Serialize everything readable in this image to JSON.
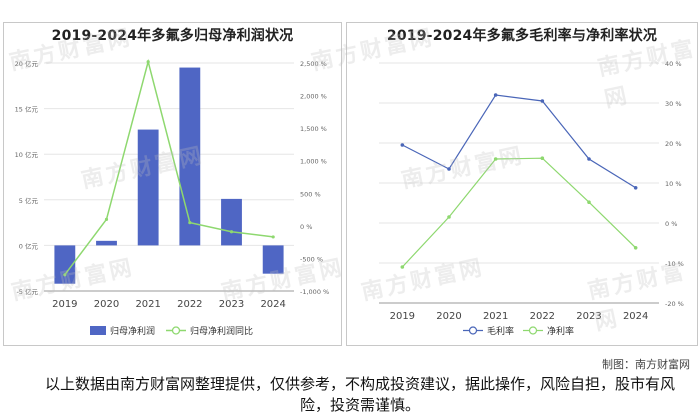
{
  "watermark": "南方财富网",
  "source": "制图：南方财富网",
  "disclaimer": "以上数据由南方财富网整理提供，仅供参考，不构成投资建议，据此操作，风险自担，股市有风险，投资需谨慎。",
  "colors": {
    "bar": "#4f66c4",
    "line_green": "#8ed86f",
    "line_blue": "#4a66b8",
    "grid": "#e6e6e6"
  },
  "chart_data": [
    {
      "type": "bar+line",
      "title": "2019-2024年多氟多归母净利润状况",
      "categories": [
        "2019",
        "2020",
        "2021",
        "2022",
        "2023",
        "2024"
      ],
      "series": [
        {
          "name": "归母净利润",
          "type": "bar",
          "axis": "left",
          "values": [
            -4.2,
            0.5,
            12.7,
            19.5,
            5.1,
            -3.1
          ]
        },
        {
          "name": "归母净利润同比",
          "type": "line",
          "axis": "right",
          "values": [
            -750,
            100,
            2520,
            50,
            -90,
            -170
          ]
        }
      ],
      "left_axis": {
        "ticks": [
          -5,
          0,
          5,
          10,
          15,
          20
        ],
        "labels": [
          "-5 亿元",
          "0 亿元",
          "5 亿元",
          "10 亿元",
          "15 亿元",
          "20 亿元"
        ],
        "range": [
          -5,
          20
        ]
      },
      "right_axis": {
        "ticks": [
          -1000,
          -500,
          0,
          500,
          1000,
          1500,
          2000,
          2500
        ],
        "labels": [
          "-1,000 %",
          "-500 %",
          "0 %",
          "500 %",
          "1,000 %",
          "1,500 %",
          "2,000 %",
          "2,500 %"
        ],
        "range": [
          -1000,
          2500
        ]
      },
      "legend_position": "bottom"
    },
    {
      "type": "line",
      "title": "2019-2024年多氟多毛利率与净利率状况",
      "categories": [
        "2019",
        "2020",
        "2021",
        "2022",
        "2023",
        "2024"
      ],
      "series": [
        {
          "name": "毛利率",
          "values": [
            19.5,
            13.5,
            32.0,
            30.5,
            16.0,
            8.8
          ]
        },
        {
          "name": "净利率",
          "values": [
            -11.0,
            1.5,
            16.0,
            16.2,
            5.2,
            -6.2
          ]
        }
      ],
      "right_axis": {
        "ticks": [
          -20,
          -10,
          0,
          10,
          20,
          30,
          40
        ],
        "labels": [
          "-20 %",
          "-10 %",
          "0 %",
          "10 %",
          "20 %",
          "30 %",
          "40 %"
        ],
        "range": [
          -20,
          40
        ]
      },
      "legend_position": "bottom"
    }
  ]
}
